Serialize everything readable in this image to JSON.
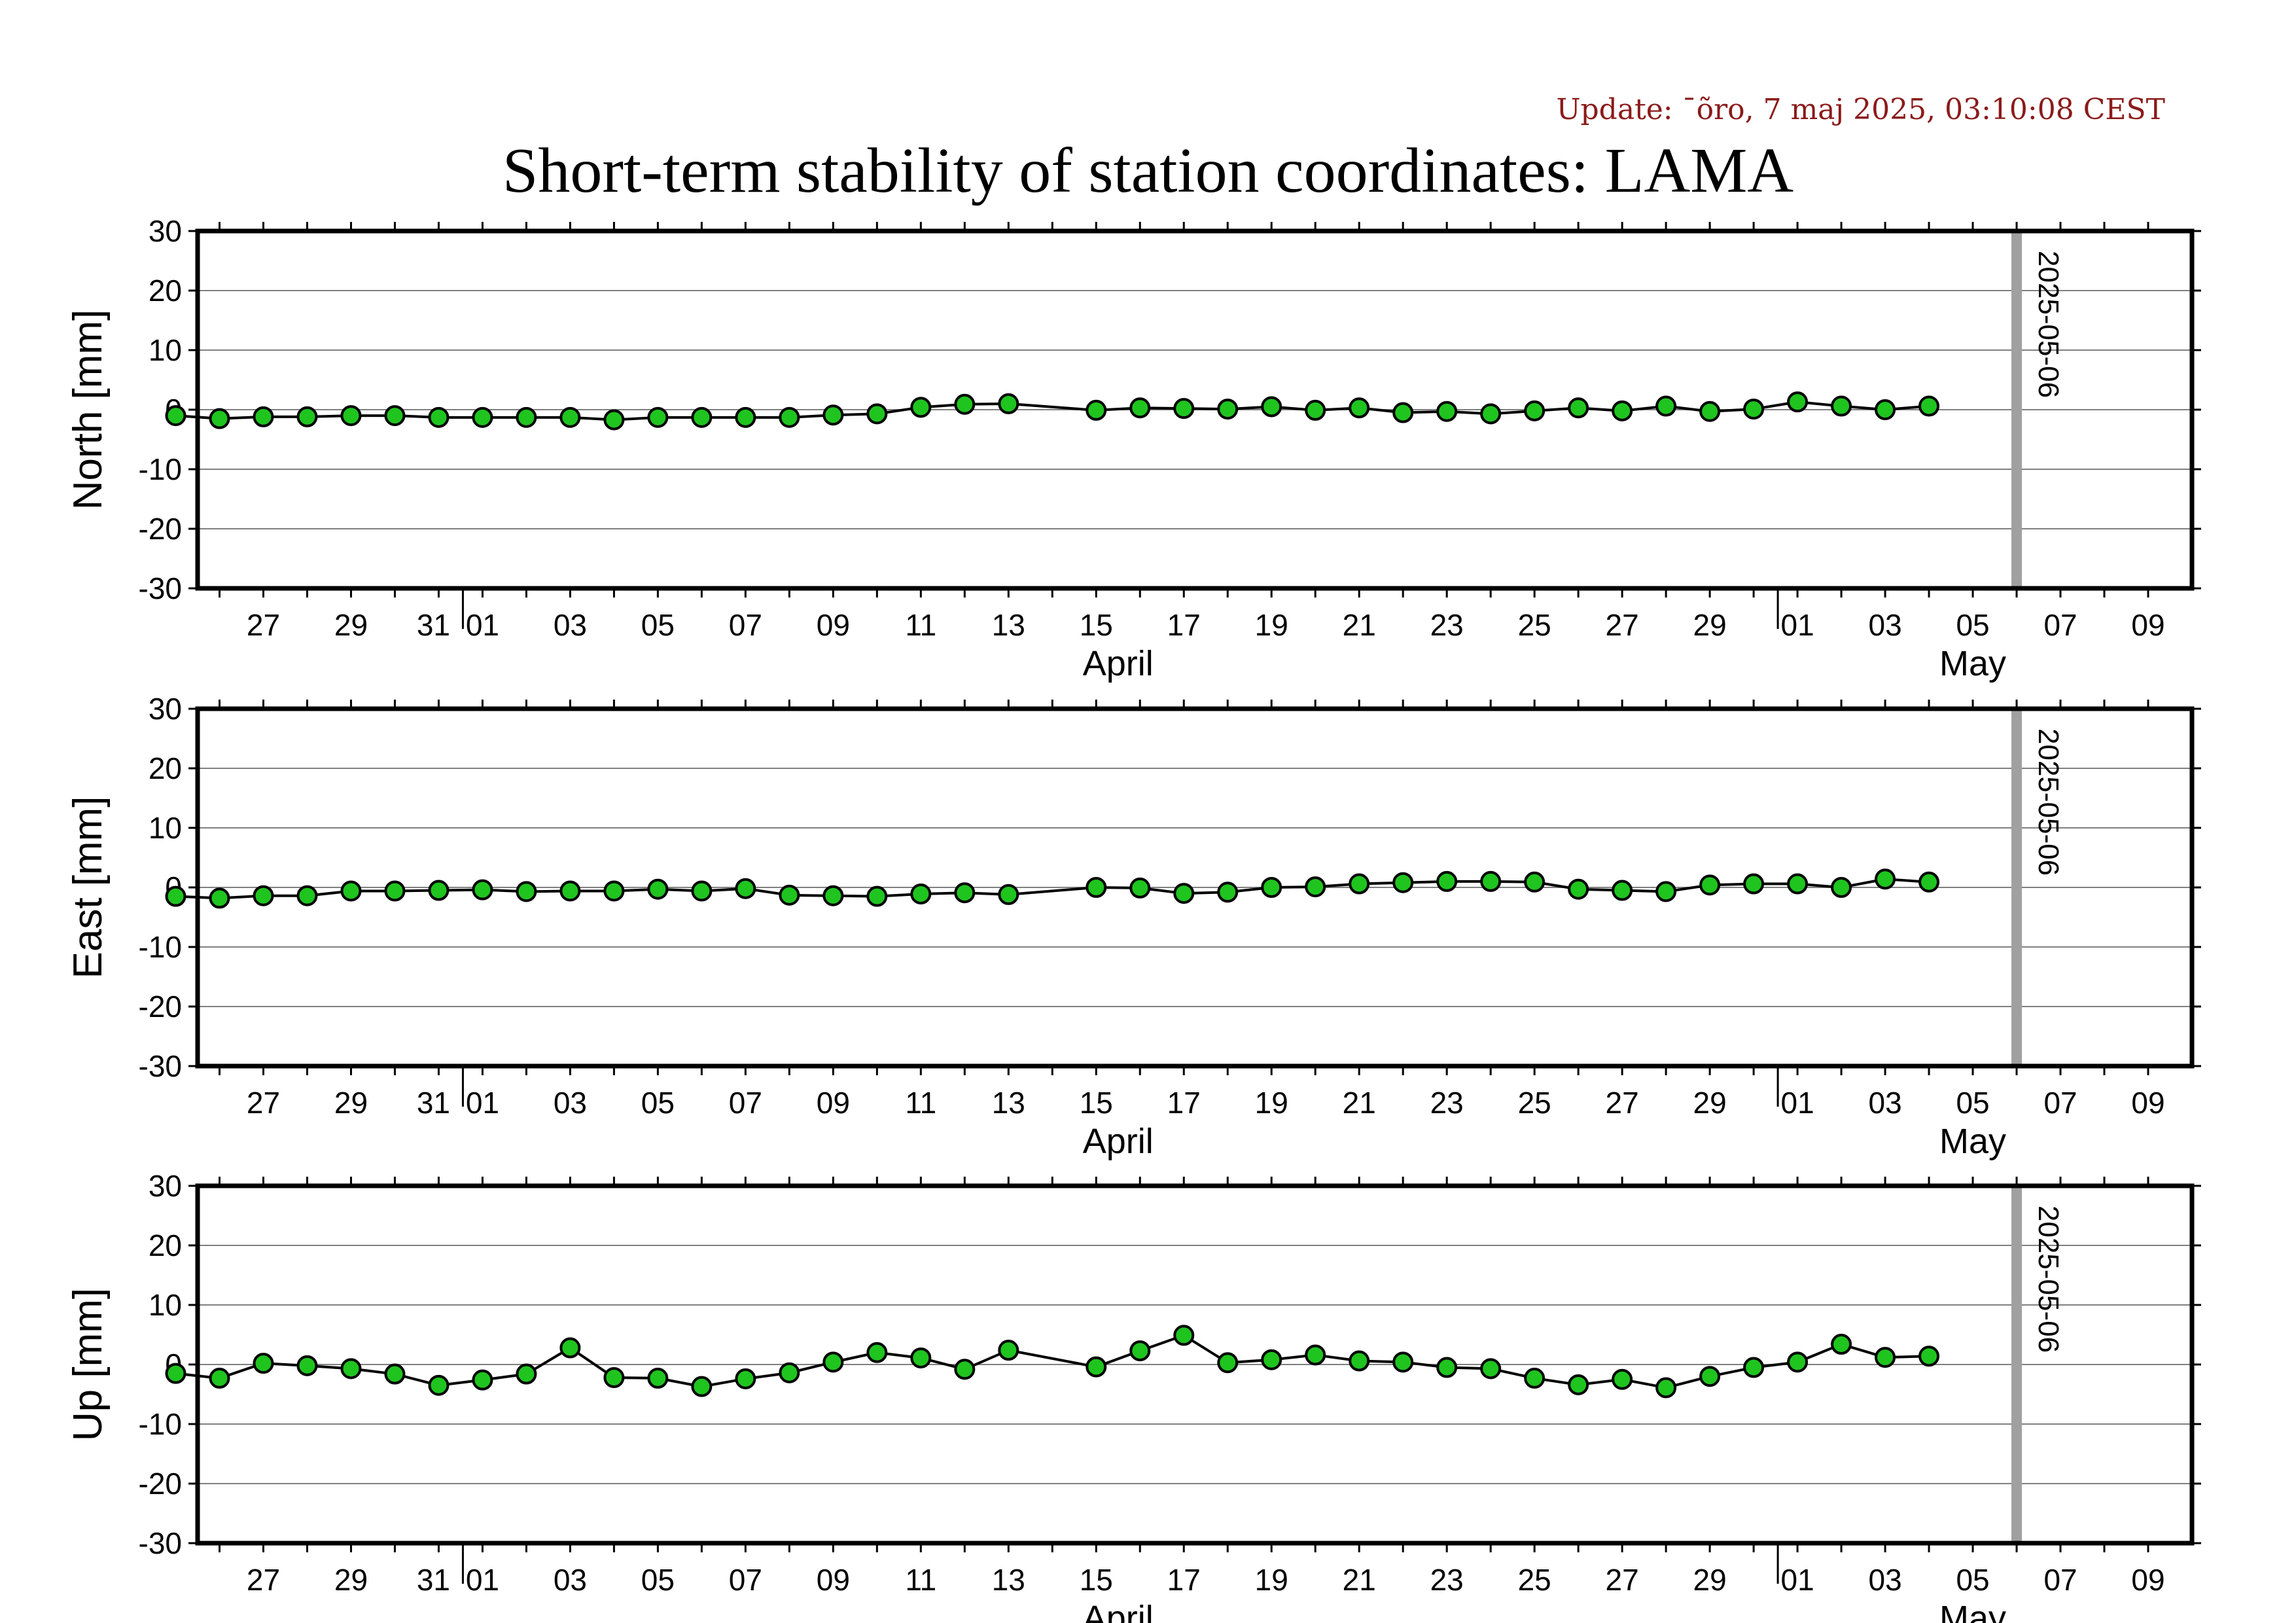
{
  "update_text": "Update: ¯õro, 7 maj 2025, 03:10:08 CEST",
  "title": "Short-term stability of station coordinates: LAMA",
  "colors": {
    "marker_fill": "#1fc41f",
    "marker_stroke": "#000000",
    "line": "#000000",
    "grid": "#808080",
    "marker_band": "#a0a0a0",
    "update_text": "#8b1a1a"
  },
  "chart_data": [
    {
      "type": "line",
      "ylabel": "North [mm]",
      "ylim": [
        -30,
        30
      ],
      "yticks": [
        30,
        20,
        10,
        0,
        -10,
        -20,
        -30
      ],
      "xlim": [
        "2025-03-25T12:00",
        "2025-05-10T00:00"
      ],
      "x_tick_labels": [
        "27",
        "29",
        "31",
        "01",
        "03",
        "05",
        "07",
        "09",
        "11",
        "13",
        "15",
        "17",
        "19",
        "21",
        "23",
        "25",
        "27",
        "29",
        "01",
        "03",
        "05",
        "07",
        "09"
      ],
      "x_month_labels": [
        "April",
        "May"
      ],
      "grid": true,
      "reference_date": "2025-05-06",
      "series": [
        {
          "x": [
            "2025-03-25",
            "2025-03-26",
            "2025-03-27",
            "2025-03-28",
            "2025-03-29",
            "2025-03-30",
            "2025-03-31",
            "2025-04-01",
            "2025-04-02",
            "2025-04-03",
            "2025-04-04",
            "2025-04-05",
            "2025-04-06",
            "2025-04-07",
            "2025-04-08",
            "2025-04-09",
            "2025-04-10",
            "2025-04-11",
            "2025-04-12",
            "2025-04-13",
            "2025-04-15",
            "2025-04-16",
            "2025-04-17",
            "2025-04-18",
            "2025-04-19",
            "2025-04-20",
            "2025-04-21",
            "2025-04-22",
            "2025-04-23",
            "2025-04-24",
            "2025-04-25",
            "2025-04-26",
            "2025-04-27",
            "2025-04-28",
            "2025-04-29",
            "2025-04-30",
            "2025-05-01",
            "2025-05-02",
            "2025-05-03",
            "2025-05-04"
          ],
          "y": [
            -1.0,
            -1.5,
            -1.2,
            -1.2,
            -1.0,
            -1.0,
            -1.3,
            -1.3,
            -1.3,
            -1.3,
            -1.7,
            -1.3,
            -1.3,
            -1.3,
            -1.3,
            -0.9,
            -0.7,
            0.4,
            0.9,
            1.0,
            -0.1,
            0.3,
            0.2,
            0.1,
            0.5,
            -0.1,
            0.3,
            -0.5,
            -0.3,
            -0.7,
            -0.2,
            0.3,
            -0.2,
            0.6,
            -0.3,
            0.1,
            1.3,
            0.6,
            0.0,
            0.6
          ]
        }
      ]
    },
    {
      "type": "line",
      "ylabel": "East [mm]",
      "ylim": [
        -30,
        30
      ],
      "yticks": [
        30,
        20,
        10,
        0,
        -10,
        -20,
        -30
      ],
      "xlim": [
        "2025-03-25T12:00",
        "2025-05-10T00:00"
      ],
      "x_tick_labels": [
        "27",
        "29",
        "31",
        "01",
        "03",
        "05",
        "07",
        "09",
        "11",
        "13",
        "15",
        "17",
        "19",
        "21",
        "23",
        "25",
        "27",
        "29",
        "01",
        "03",
        "05",
        "07",
        "09"
      ],
      "x_month_labels": [
        "April",
        "May"
      ],
      "grid": true,
      "reference_date": "2025-05-06",
      "series": [
        {
          "x": [
            "2025-03-25",
            "2025-03-26",
            "2025-03-27",
            "2025-03-28",
            "2025-03-29",
            "2025-03-30",
            "2025-03-31",
            "2025-04-01",
            "2025-04-02",
            "2025-04-03",
            "2025-04-04",
            "2025-04-05",
            "2025-04-06",
            "2025-04-07",
            "2025-04-08",
            "2025-04-09",
            "2025-04-10",
            "2025-04-11",
            "2025-04-12",
            "2025-04-13",
            "2025-04-15",
            "2025-04-16",
            "2025-04-17",
            "2025-04-18",
            "2025-04-19",
            "2025-04-20",
            "2025-04-21",
            "2025-04-22",
            "2025-04-23",
            "2025-04-24",
            "2025-04-25",
            "2025-04-26",
            "2025-04-27",
            "2025-04-28",
            "2025-04-29",
            "2025-04-30",
            "2025-05-01",
            "2025-05-02",
            "2025-05-03",
            "2025-05-04"
          ],
          "y": [
            -1.5,
            -1.8,
            -1.4,
            -1.4,
            -0.6,
            -0.6,
            -0.5,
            -0.4,
            -0.7,
            -0.6,
            -0.6,
            -0.3,
            -0.6,
            -0.2,
            -1.3,
            -1.4,
            -1.5,
            -1.1,
            -0.9,
            -1.2,
            0.0,
            -0.1,
            -1.0,
            -0.8,
            0.0,
            0.1,
            0.6,
            0.8,
            1.0,
            1.0,
            0.9,
            -0.3,
            -0.5,
            -0.7,
            0.4,
            0.6,
            0.6,
            0.0,
            1.4,
            0.9
          ]
        }
      ]
    },
    {
      "type": "line",
      "ylabel": "Up [mm]",
      "ylim": [
        -30,
        30
      ],
      "yticks": [
        30,
        20,
        10,
        0,
        -10,
        -20,
        -30
      ],
      "xlim": [
        "2025-03-25T12:00",
        "2025-05-10T00:00"
      ],
      "x_tick_labels": [
        "27",
        "29",
        "31",
        "01",
        "03",
        "05",
        "07",
        "09",
        "11",
        "13",
        "15",
        "17",
        "19",
        "21",
        "23",
        "25",
        "27",
        "29",
        "01",
        "03",
        "05",
        "07",
        "09"
      ],
      "x_month_labels": [
        "April",
        "May"
      ],
      "grid": true,
      "reference_date": "2025-05-06",
      "series": [
        {
          "x": [
            "2025-03-25",
            "2025-03-26",
            "2025-03-27",
            "2025-03-28",
            "2025-03-29",
            "2025-03-30",
            "2025-03-31",
            "2025-04-01",
            "2025-04-02",
            "2025-04-03",
            "2025-04-04",
            "2025-04-05",
            "2025-04-06",
            "2025-04-07",
            "2025-04-08",
            "2025-04-09",
            "2025-04-10",
            "2025-04-11",
            "2025-04-12",
            "2025-04-13",
            "2025-04-15",
            "2025-04-16",
            "2025-04-17",
            "2025-04-18",
            "2025-04-19",
            "2025-04-20",
            "2025-04-21",
            "2025-04-22",
            "2025-04-23",
            "2025-04-24",
            "2025-04-25",
            "2025-04-26",
            "2025-04-27",
            "2025-04-28",
            "2025-04-29",
            "2025-04-30",
            "2025-05-01",
            "2025-05-02",
            "2025-05-03",
            "2025-05-04"
          ],
          "y": [
            -1.5,
            -2.3,
            0.2,
            -0.2,
            -0.7,
            -1.6,
            -3.5,
            -2.6,
            -1.6,
            2.8,
            -2.2,
            -2.3,
            -3.7,
            -2.4,
            -1.4,
            0.4,
            2.0,
            1.1,
            -0.8,
            2.4,
            -0.4,
            2.3,
            4.9,
            0.3,
            0.8,
            1.6,
            0.6,
            0.4,
            -0.5,
            -0.7,
            -2.3,
            -3.4,
            -2.5,
            -3.9,
            -2.0,
            -0.5,
            0.4,
            3.4,
            1.2,
            1.4
          ]
        }
      ]
    }
  ]
}
